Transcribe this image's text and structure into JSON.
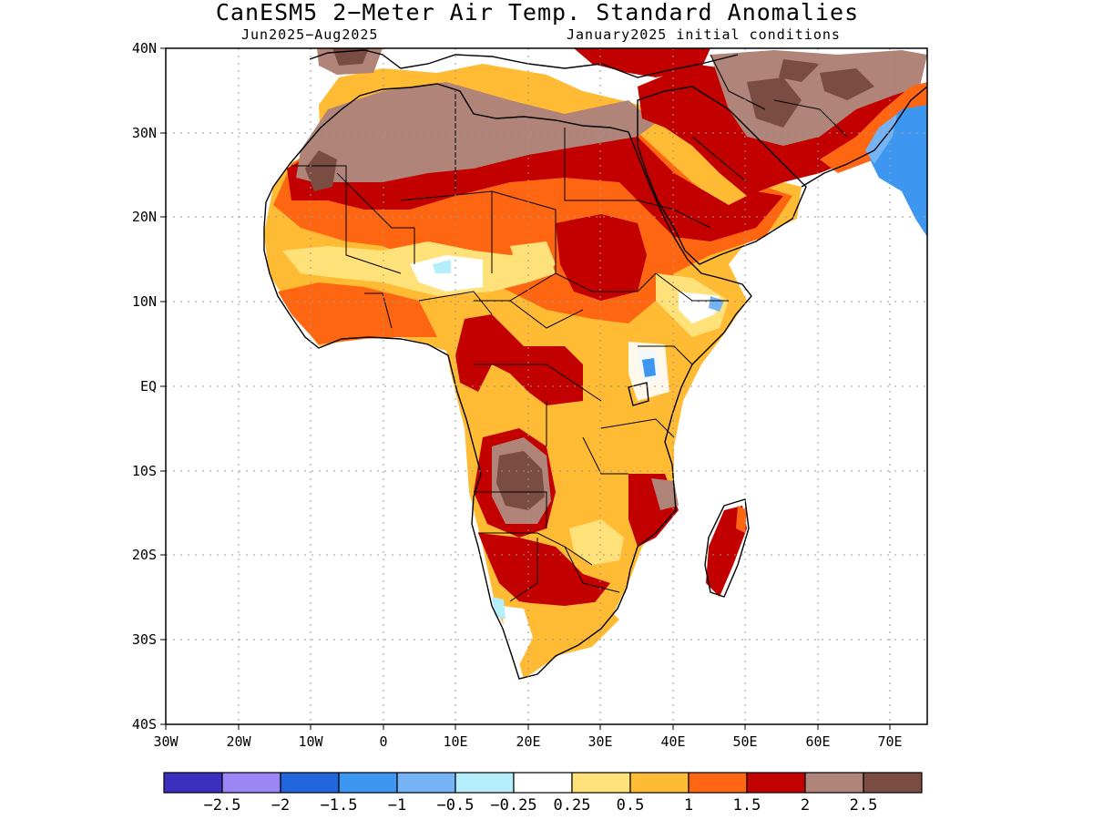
{
  "title": "CanESM5 2−Meter Air Temp. Standard Anomalies",
  "period": "Jun2025−Aug2025",
  "initial_conditions": "January2025 initial conditions",
  "lat_ticks": [
    "40N",
    "30N",
    "20N",
    "10N",
    "EQ",
    "10S",
    "20S",
    "30S",
    "40S"
  ],
  "lon_ticks": [
    "30W",
    "20W",
    "10W",
    "0",
    "10E",
    "20E",
    "30E",
    "40E",
    "50E",
    "60E",
    "70E"
  ],
  "colorbar": {
    "colors": [
      "#3a2fbf",
      "#9b86f5",
      "#2266dd",
      "#3d96f0",
      "#76b3f5",
      "#b4eefa",
      "#ffffff",
      "#ffe17a",
      "#ffbb33",
      "#ff6611",
      "#c30000",
      "#b08478",
      "#7a4c42"
    ],
    "labels": [
      "−2.5",
      "−2",
      "−1.5",
      "−1",
      "−0.5",
      "−0.25",
      "0.25",
      "0.5",
      "1",
      "1.5",
      "2",
      "2.5"
    ]
  },
  "region": "Africa"
}
